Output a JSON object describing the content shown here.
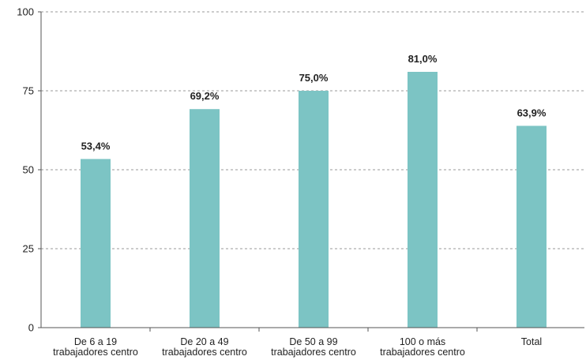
{
  "chart_data": {
    "type": "bar",
    "categories": [
      [
        "De 6 a 19",
        "trabajadores centro"
      ],
      [
        "De 20 a 49",
        "trabajadores centro"
      ],
      [
        "De 50 a 99",
        "trabajadores centro"
      ],
      [
        "100 o más",
        "trabajadores centro"
      ],
      [
        "Total"
      ]
    ],
    "values": [
      53.4,
      69.2,
      75.0,
      81.0,
      63.9
    ],
    "data_labels": [
      "53,4%",
      "69,2%",
      "75,0%",
      "81,0%",
      "63,9%"
    ],
    "title": "",
    "xlabel": "",
    "ylabel": "",
    "ylim": [
      0,
      100
    ],
    "yticks": [
      0,
      25,
      50,
      75,
      100
    ],
    "grid": true,
    "legend": "none",
    "bar_color": "#7cc4c4",
    "grid_color": "#999999",
    "axis_color": "#555555"
  }
}
